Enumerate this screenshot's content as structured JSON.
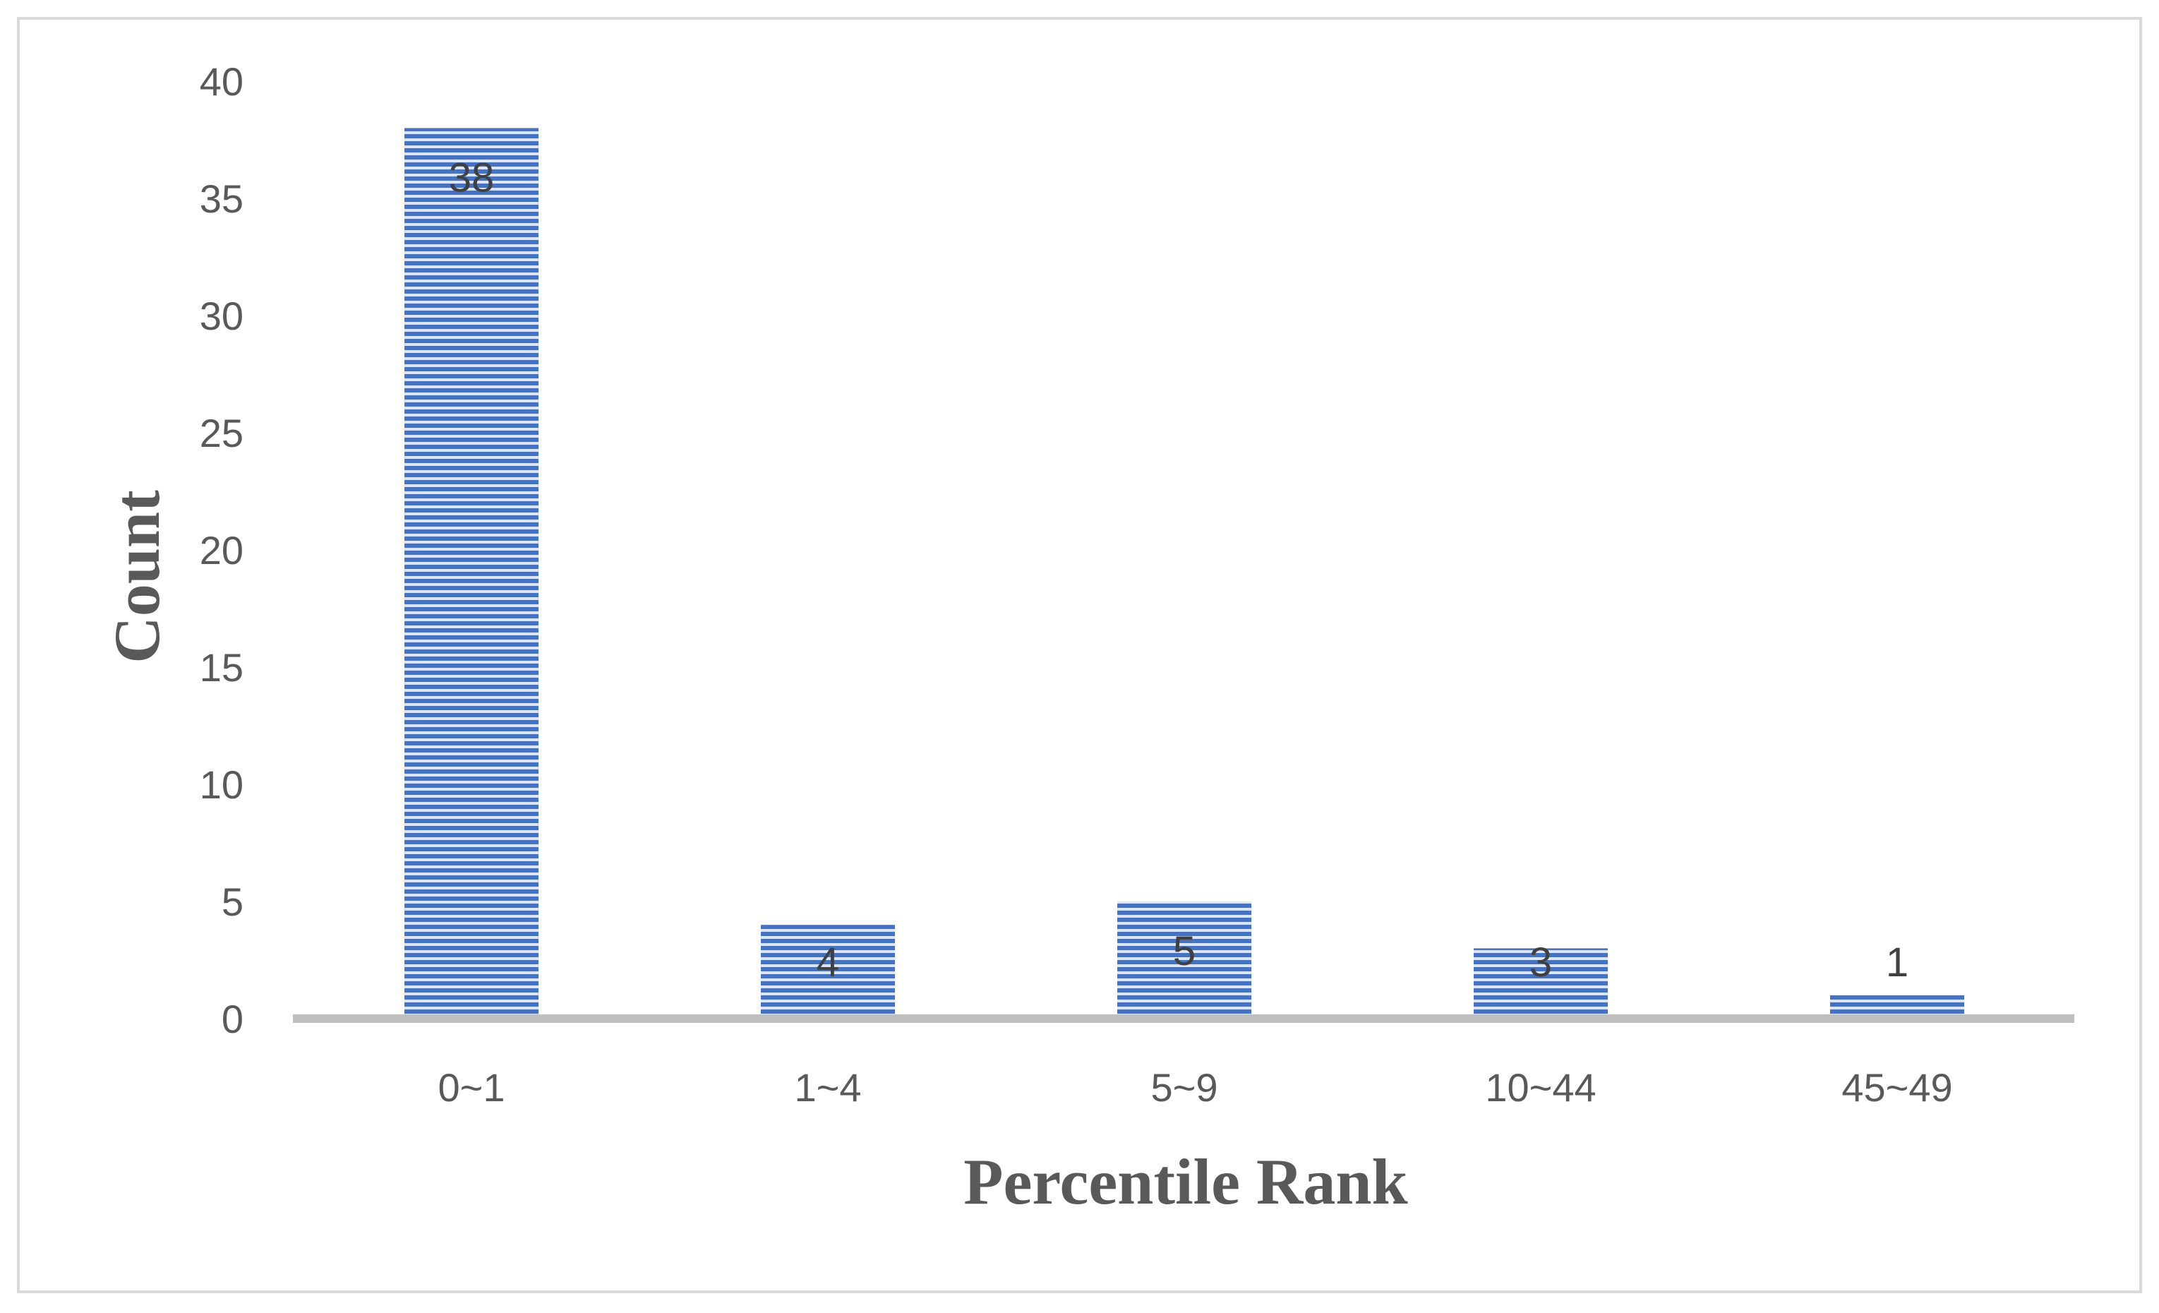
{
  "chart_data": {
    "type": "bar",
    "title": "",
    "xlabel": "Percentile Rank",
    "ylabel": "Count",
    "categories": [
      "0~1",
      "1~4",
      "5~9",
      "10~44",
      "45~49"
    ],
    "values": [
      38,
      4,
      5,
      3,
      1
    ],
    "data_labels": [
      "38",
      "4",
      "5",
      "3",
      "1"
    ],
    "ylim": [
      0,
      40
    ],
    "yticks": [
      "0",
      "5",
      "10",
      "15",
      "20",
      "25",
      "30",
      "35",
      "40"
    ],
    "grid": false,
    "legend": "none",
    "bar_color": "#4472c4",
    "bar_fill": "horizontal-stripes"
  }
}
